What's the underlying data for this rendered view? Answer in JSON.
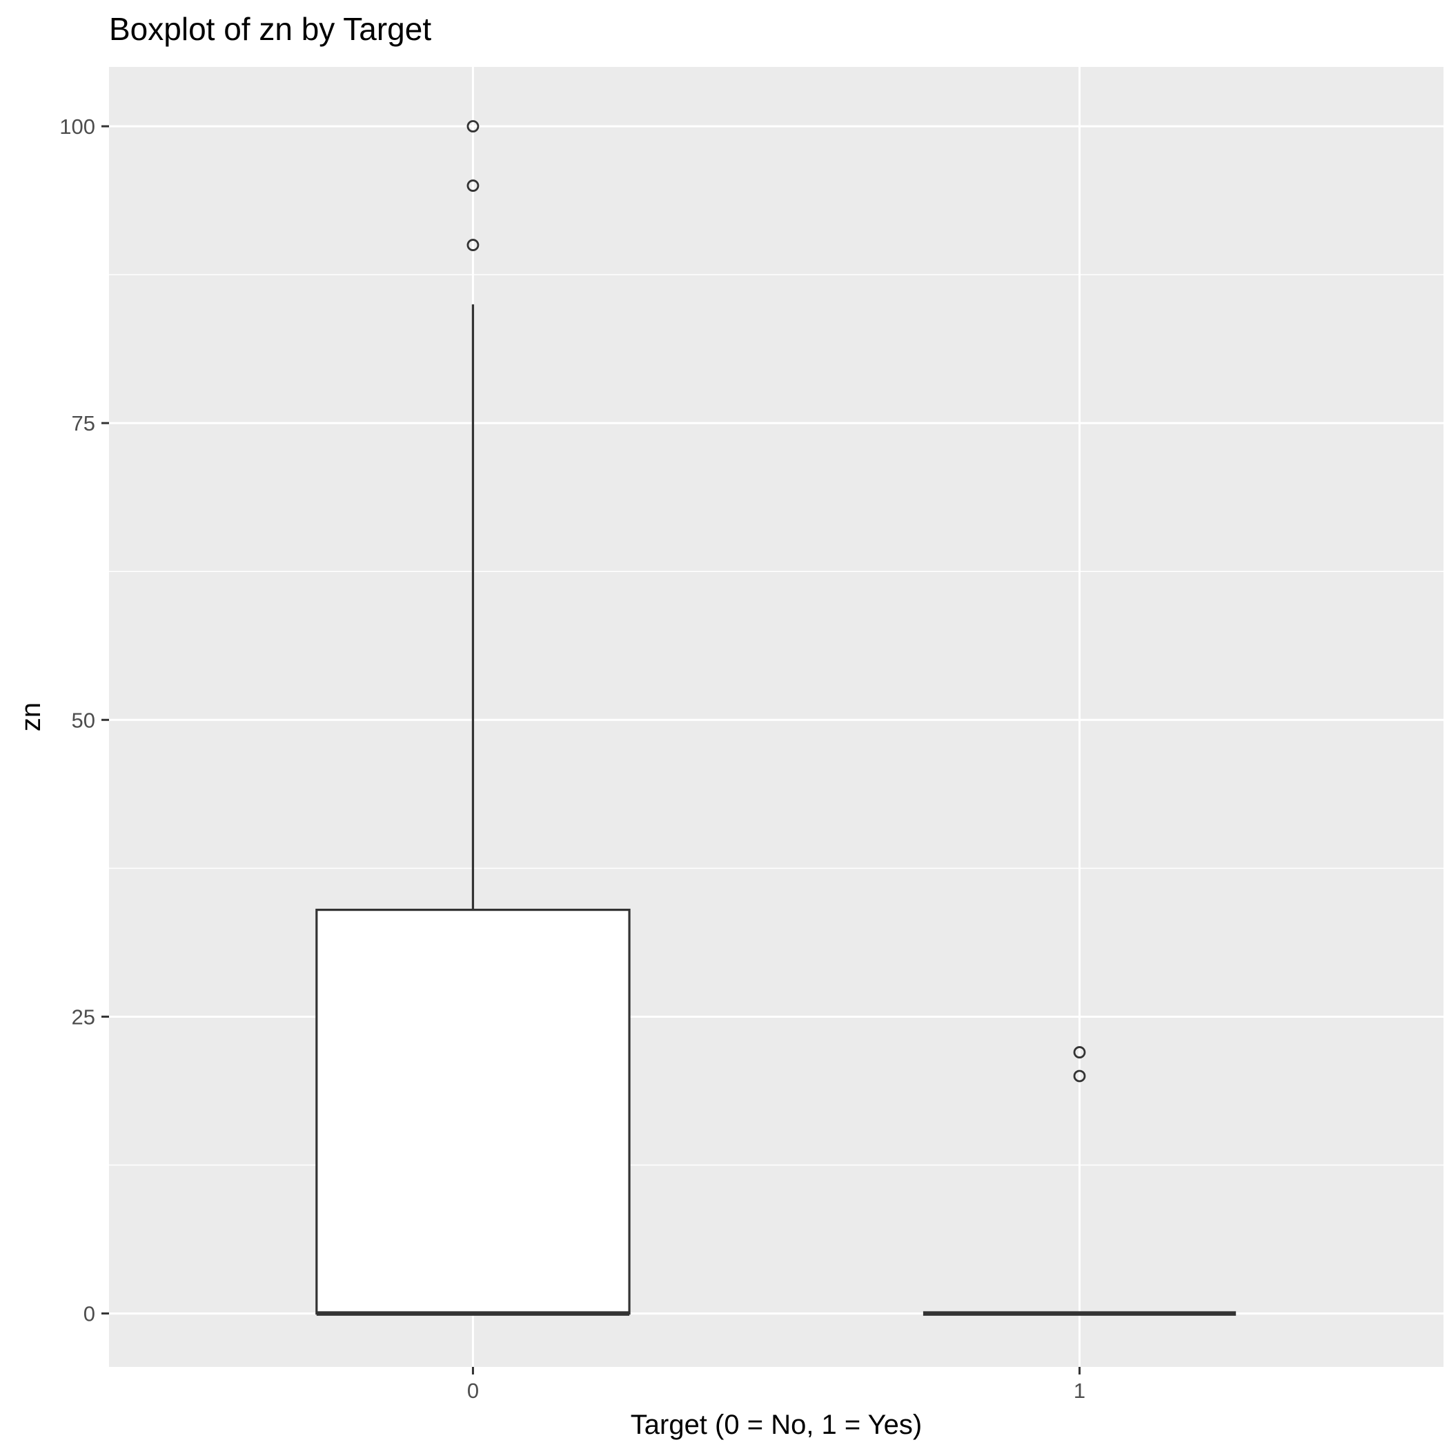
{
  "chart_data": {
    "type": "boxplot",
    "title": "Boxplot of zn by Target",
    "xlabel": "Target (0 = No, 1 = Yes)",
    "ylabel": "zn",
    "categories": [
      "0",
      "1"
    ],
    "yticks": [
      0,
      25,
      50,
      75,
      100
    ],
    "ylim": [
      -4.5,
      105
    ],
    "grid": true,
    "boxes": [
      {
        "category": "0",
        "min": 0,
        "q1": 0,
        "median": 0,
        "q3": 34,
        "max": 85,
        "outliers": [
          90,
          95,
          100
        ]
      },
      {
        "category": "1",
        "min": 0,
        "q1": 0,
        "median": 0,
        "q3": 0,
        "max": 0,
        "outliers": [
          20,
          22
        ]
      }
    ],
    "colors": {
      "panel": "#ebebeb",
      "grid": "#ffffff",
      "box_fill": "#ffffff",
      "box_line": "#333333",
      "tick_text": "#4d4d4d",
      "title_text": "#000000"
    }
  }
}
